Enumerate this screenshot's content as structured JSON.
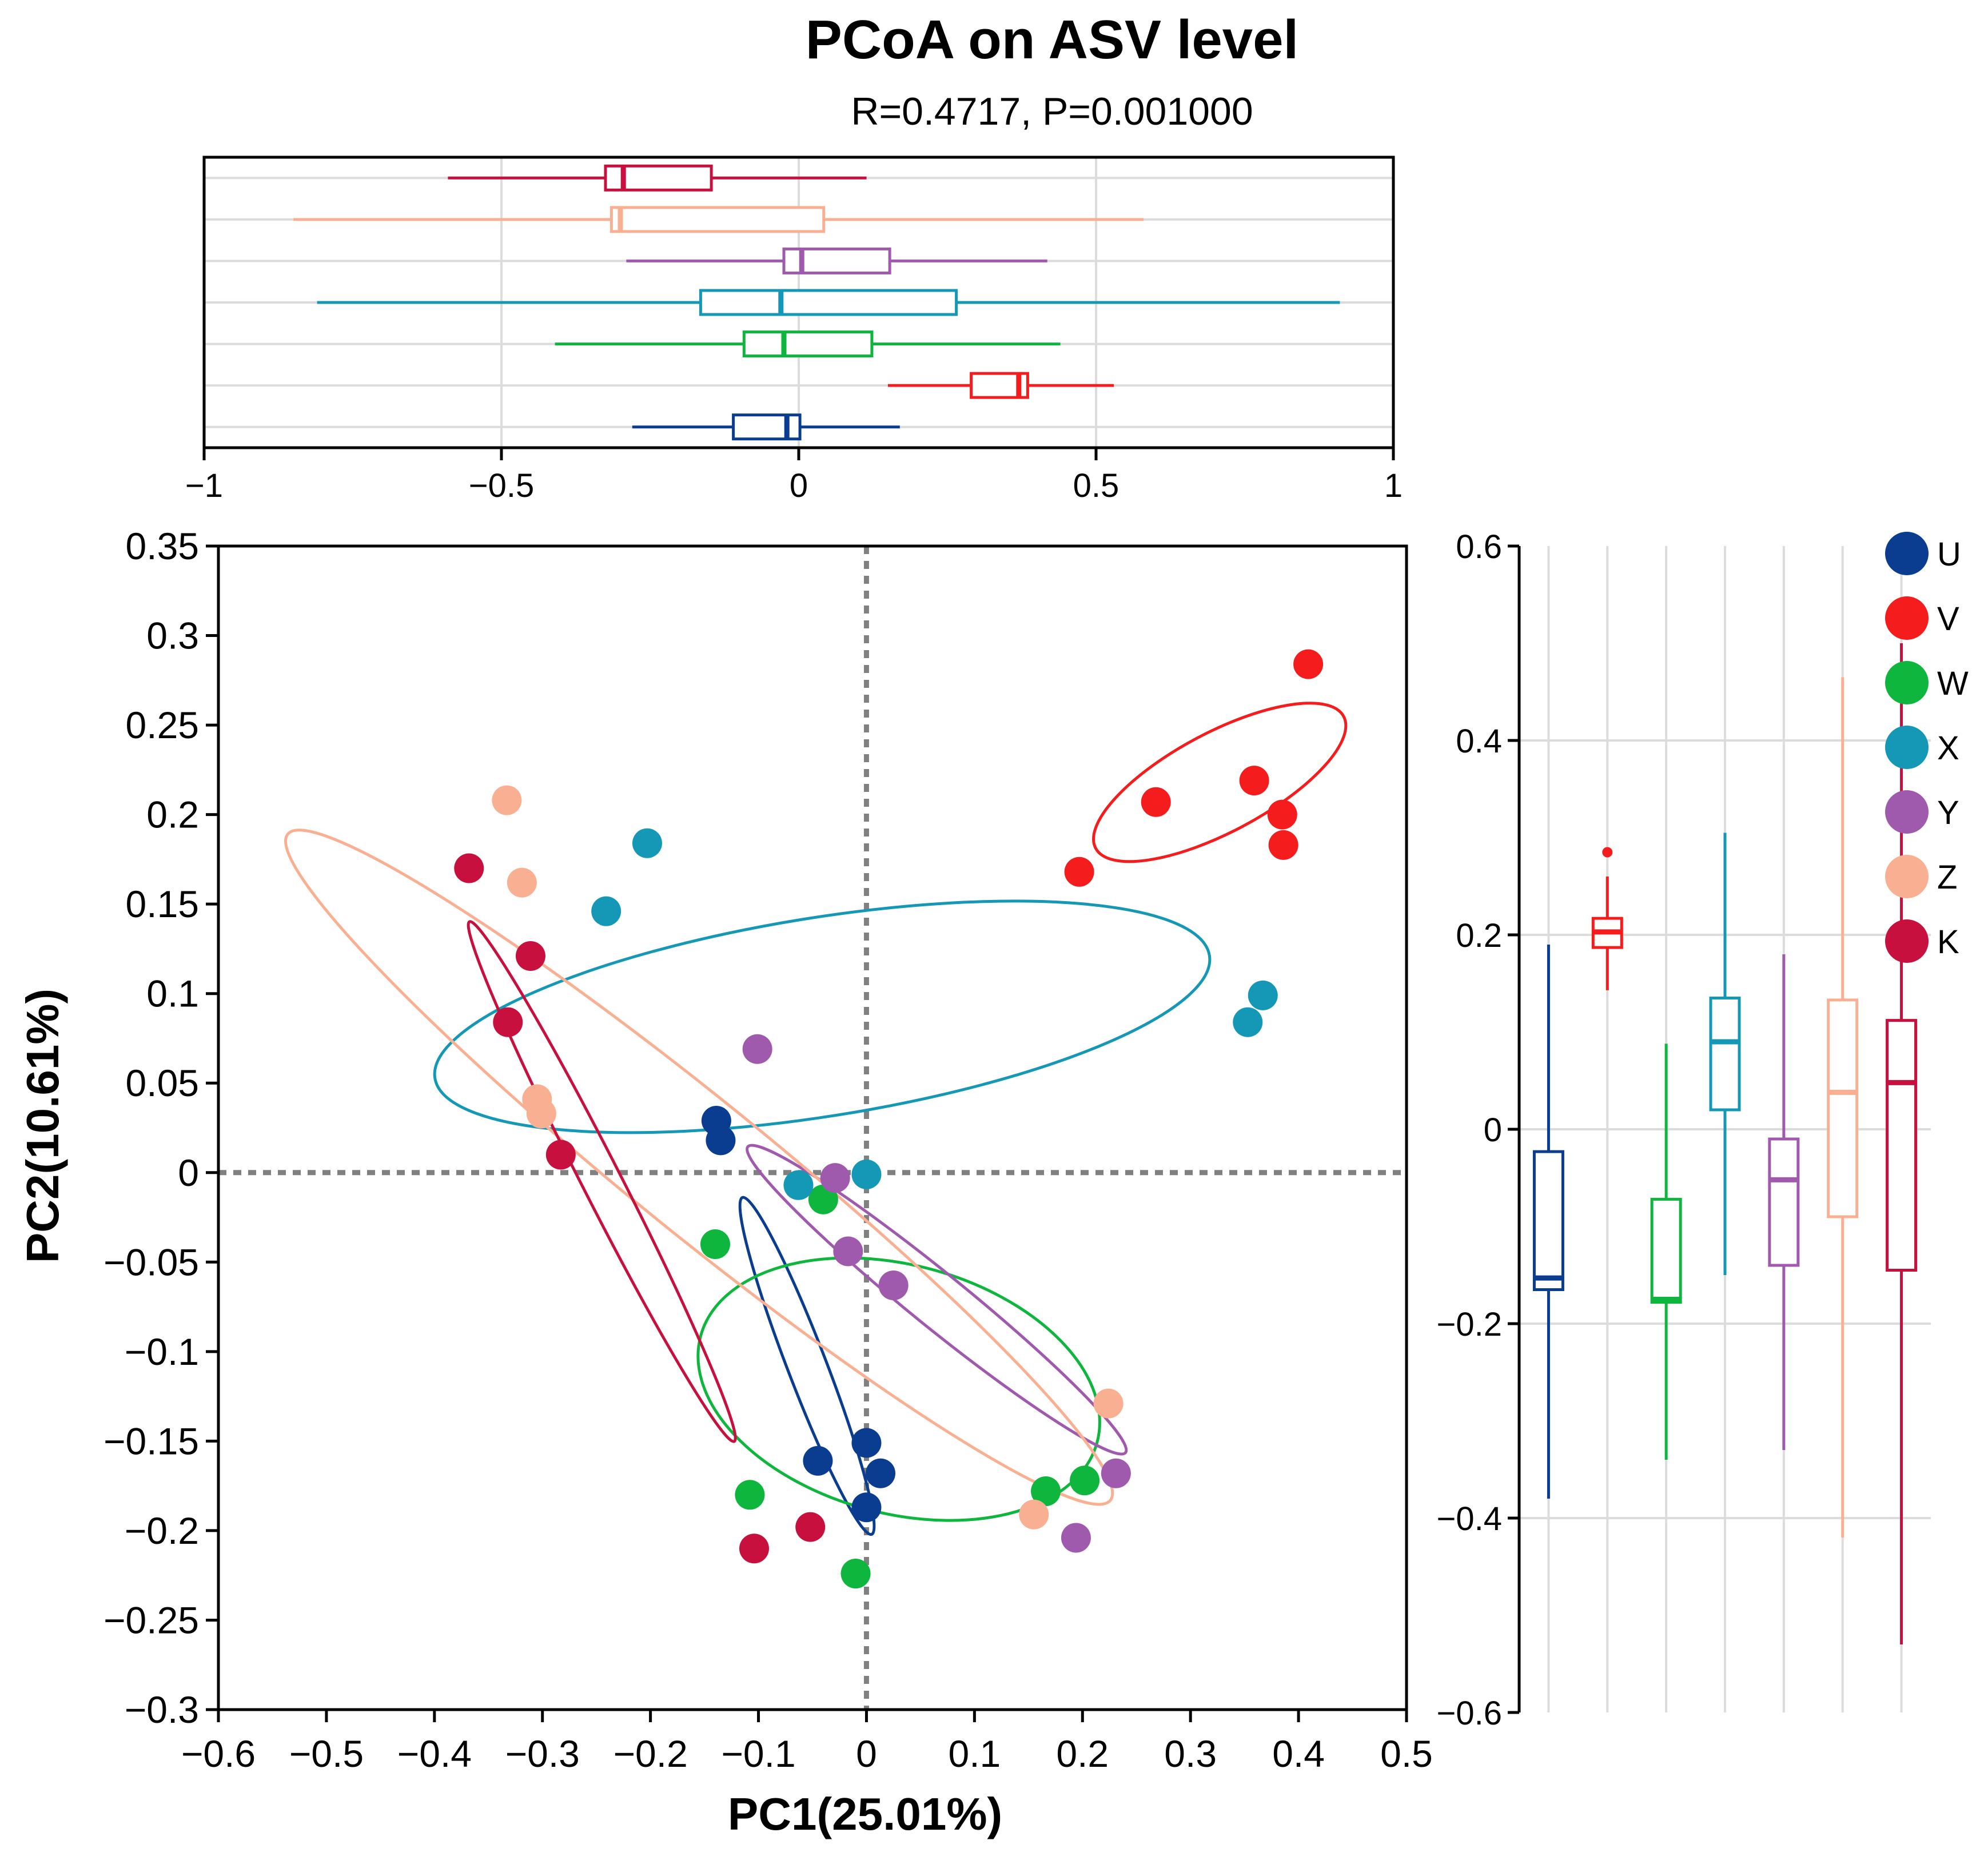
{
  "chart_data": {
    "type": "scatter",
    "title": "PCoA on ASV level",
    "subtitle": "R=0.4717, P=0.001000",
    "xlabel": "PC1(25.01%)",
    "ylabel": "PC2(10.61%)",
    "xlim": [
      -0.6,
      0.5
    ],
    "ylim": [
      -0.3,
      0.35
    ],
    "x_ticks": [
      "−0.6",
      "−0.5",
      "−0.4",
      "−0.3",
      "−0.2",
      "−0.1",
      "0",
      "0.1",
      "0.2",
      "0.3",
      "0.4",
      "0.5"
    ],
    "y_ticks": [
      "−0.3",
      "−0.25",
      "−0.2",
      "−0.15",
      "−0.1",
      "−0.05",
      "0",
      "0.05",
      "0.1",
      "0.15",
      "0.2",
      "0.25",
      "0.3",
      "0.35"
    ],
    "top_box_ticks": [
      "−1",
      "−0.5",
      "0",
      "0.5",
      "1"
    ],
    "right_box_ticks": [
      "−0.6",
      "−0.4",
      "−0.2",
      "0",
      "0.2",
      "0.4",
      "0.6"
    ],
    "legend": [
      {
        "name": "U",
        "color": "#0a3d8f"
      },
      {
        "name": "V",
        "color": "#f41c1c"
      },
      {
        "name": "W",
        "color": "#0eb63d"
      },
      {
        "name": "X",
        "color": "#1598b5"
      },
      {
        "name": "Y",
        "color": "#9f5aad"
      },
      {
        "name": "Z",
        "color": "#f9b092"
      },
      {
        "name": "K",
        "color": "#c8103e"
      }
    ],
    "series": [
      {
        "name": "U",
        "color": "#0a3d8f",
        "points": [
          [
            -0.139,
            0.029
          ],
          [
            -0.135,
            0.018
          ],
          [
            -0.045,
            -0.161
          ],
          [
            0.0,
            -0.151
          ],
          [
            0.013,
            -0.168
          ],
          [
            0.0,
            -0.187
          ]
        ],
        "ellipse": {
          "cx": -0.055,
          "cy": -0.108,
          "rx": 0.167,
          "ry": 0.018,
          "angle": -69
        }
      },
      {
        "name": "V",
        "color": "#f41c1c",
        "points": [
          [
            0.409,
            0.284
          ],
          [
            0.359,
            0.219
          ],
          [
            0.385,
            0.2
          ],
          [
            0.386,
            0.183
          ],
          [
            0.268,
            0.207
          ],
          [
            0.197,
            0.168
          ]
        ],
        "ellipse": {
          "cx": 0.327,
          "cy": 0.218,
          "rx": 0.13,
          "ry": 0.046,
          "angle": 28
        }
      },
      {
        "name": "W",
        "color": "#0eb63d",
        "points": [
          [
            -0.14,
            -0.04
          ],
          [
            -0.04,
            -0.015
          ],
          [
            -0.108,
            -0.18
          ],
          [
            -0.01,
            -0.224
          ],
          [
            0.166,
            -0.178
          ],
          [
            0.202,
            -0.172
          ]
        ],
        "ellipse": {
          "cx": 0.03,
          "cy": -0.121,
          "rx": 0.19,
          "ry": 0.115,
          "angle": -15
        }
      },
      {
        "name": "X",
        "color": "#1598b5",
        "points": [
          [
            -0.203,
            0.184
          ],
          [
            -0.241,
            0.146
          ],
          [
            -0.063,
            -0.007
          ],
          [
            0.0,
            -0.001
          ],
          [
            0.367,
            0.099
          ],
          [
            0.353,
            0.084
          ]
        ],
        "ellipse": {
          "cx": -0.041,
          "cy": 0.087,
          "rx": 0.363,
          "ry": 0.092,
          "angle": 9
        }
      },
      {
        "name": "Y",
        "color": "#9f5aad",
        "points": [
          [
            -0.101,
            0.069
          ],
          [
            -0.029,
            -0.003
          ],
          [
            -0.017,
            -0.044
          ],
          [
            0.025,
            -0.063
          ],
          [
            0.231,
            -0.168
          ],
          [
            0.194,
            -0.204
          ]
        ],
        "ellipse": {
          "cx": 0.065,
          "cy": -0.071,
          "rx": 0.225,
          "ry": 0.025,
          "angle": -39
        }
      },
      {
        "name": "Z",
        "color": "#f9b092",
        "points": [
          [
            -0.333,
            0.208
          ],
          [
            -0.319,
            0.162
          ],
          [
            -0.305,
            0.041
          ],
          [
            -0.301,
            0.033
          ],
          [
            0.224,
            -0.129
          ],
          [
            0.155,
            -0.191
          ]
        ],
        "ellipse": {
          "cx": -0.155,
          "cy": 0.003,
          "rx": 0.49,
          "ry": 0.062,
          "angle": -39
        }
      },
      {
        "name": "K",
        "color": "#c8103e",
        "points": [
          [
            -0.368,
            0.17
          ],
          [
            -0.311,
            0.121
          ],
          [
            -0.332,
            0.084
          ],
          [
            -0.283,
            0.01
          ],
          [
            -0.052,
            -0.198
          ],
          [
            -0.104,
            -0.21
          ]
        ],
        "ellipse": {
          "cx": -0.245,
          "cy": -0.005,
          "rx": 0.27,
          "ry": 0.018,
          "angle": -63
        }
      }
    ],
    "pc1_boxes": [
      {
        "name": "K",
        "color": "#c8103e",
        "min": -0.59,
        "q1": -0.325,
        "median": -0.295,
        "q3": -0.147,
        "max": 0.114,
        "outliers": []
      },
      {
        "name": "Z",
        "color": "#f9b092",
        "min": -0.85,
        "q1": -0.315,
        "median": -0.3,
        "q3": 0.042,
        "max": 0.58,
        "outliers": []
      },
      {
        "name": "Y",
        "color": "#9f5aad",
        "min": -0.29,
        "q1": -0.025,
        "median": 0.005,
        "q3": 0.153,
        "max": 0.418,
        "outliers": []
      },
      {
        "name": "X",
        "color": "#1598b5",
        "min": -0.81,
        "q1": -0.165,
        "median": -0.03,
        "q3": 0.265,
        "max": 0.91,
        "outliers": []
      },
      {
        "name": "W",
        "color": "#0eb63d",
        "min": -0.41,
        "q1": -0.092,
        "median": -0.025,
        "q3": 0.123,
        "max": 0.44,
        "outliers": []
      },
      {
        "name": "V",
        "color": "#f41c1c",
        "min": 0.15,
        "q1": 0.29,
        "median": 0.37,
        "q3": 0.385,
        "max": 0.53,
        "outliers": []
      },
      {
        "name": "U",
        "color": "#0a3d8f",
        "min": -0.28,
        "q1": -0.11,
        "median": -0.02,
        "q3": 0.002,
        "max": 0.17,
        "outliers": []
      }
    ],
    "pc2_boxes": [
      {
        "name": "U",
        "color": "#0a3d8f",
        "min": -0.38,
        "q1": -0.165,
        "median": -0.153,
        "q3": -0.023,
        "max": 0.19,
        "outliers": []
      },
      {
        "name": "V",
        "color": "#f41c1c",
        "min": 0.143,
        "q1": 0.187,
        "median": 0.203,
        "q3": 0.217,
        "max": 0.26,
        "outliers": [
          0.285
        ]
      },
      {
        "name": "W",
        "color": "#0eb63d",
        "min": -0.34,
        "q1": -0.178,
        "median": -0.175,
        "q3": -0.072,
        "max": 0.088,
        "outliers": []
      },
      {
        "name": "X",
        "color": "#1598b5",
        "min": -0.15,
        "q1": 0.02,
        "median": 0.09,
        "q3": 0.135,
        "max": 0.305,
        "outliers": []
      },
      {
        "name": "Y",
        "color": "#9f5aad",
        "min": -0.33,
        "q1": -0.14,
        "median": -0.052,
        "q3": -0.01,
        "max": 0.18,
        "outliers": []
      },
      {
        "name": "Z",
        "color": "#f9b092",
        "min": -0.42,
        "q1": -0.09,
        "median": 0.038,
        "q3": 0.133,
        "max": 0.465,
        "outliers": []
      },
      {
        "name": "K",
        "color": "#c8103e",
        "min": -0.53,
        "q1": -0.145,
        "median": 0.048,
        "q3": 0.112,
        "max": 0.5,
        "outliers": []
      }
    ]
  }
}
